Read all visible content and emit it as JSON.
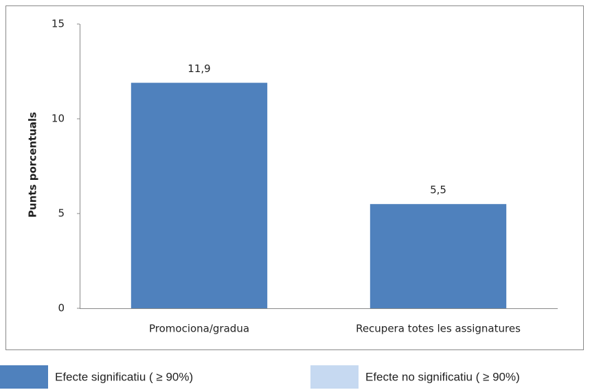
{
  "chart_data": {
    "type": "bar",
    "y_label": "Punts porcentuals",
    "categories": [
      "Promociona/gradua",
      "Recupera totes les assignatures"
    ],
    "series": [
      {
        "name": "Efecte significatiu ( ≥ 90%)",
        "color": "#4f81bd",
        "values": [
          11.9,
          5.5
        ],
        "value_labels": [
          "11,9",
          "5,5"
        ]
      },
      {
        "name": "Efecte no significatiu ( ≥ 90%)",
        "color": "#c6d9f1",
        "values": [
          null,
          null
        ]
      }
    ],
    "ylim": [
      0,
      15
    ],
    "yticks": [
      0,
      5,
      10,
      15
    ],
    "grid": false
  }
}
